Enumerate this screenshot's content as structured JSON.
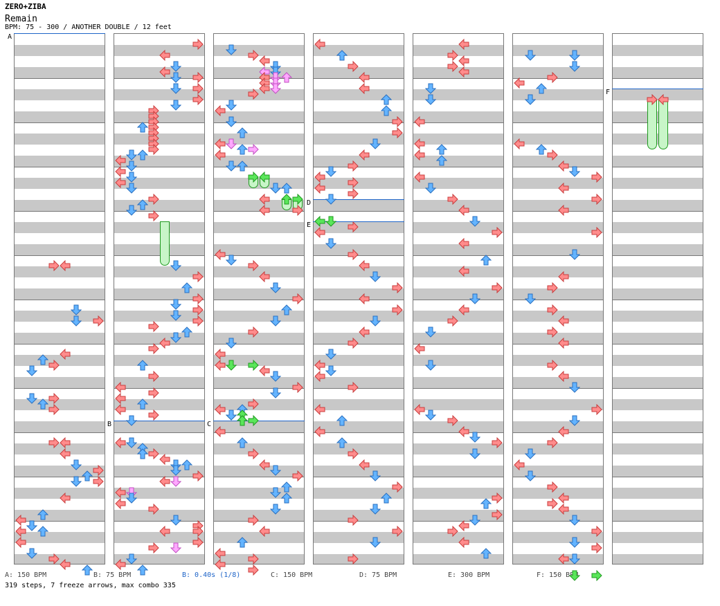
{
  "header": {
    "artist": "ZERO+ZIBA",
    "title": "Remain",
    "bpm_line": "BPM: 75 - 300 / ANOTHER DOUBLE / 12 feet"
  },
  "colors": {
    "left_right": "#ff8080",
    "up_down": "#60b0ff",
    "shock": "#ff9cff",
    "freeze": "#50e050",
    "bpm_line": "#1e64c8"
  },
  "bpm_markers": [
    {
      "label": "A"
    },
    {
      "label": "B"
    },
    {
      "label": "C"
    },
    {
      "label": "D"
    },
    {
      "label": "E"
    },
    {
      "label": "F"
    }
  ],
  "footer": {
    "legend": [
      {
        "text": "A: 150 BPM",
        "color": "#444444"
      },
      {
        "text": "B: 75 BPM",
        "color": "#444444"
      },
      {
        "text": "B: 0.40s (1/8)",
        "color": "#1e64c8"
      },
      {
        "text": "C: 150 BPM",
        "color": "#444444"
      },
      {
        "text": "D: 75 BPM",
        "color": "#444444"
      },
      {
        "text": "E: 300 BPM",
        "color": "#444444"
      },
      {
        "text": "F: 150 BPM",
        "color": "#444444"
      }
    ],
    "summary": "319 steps, 7 freeze arrows, max combo 335"
  }
}
